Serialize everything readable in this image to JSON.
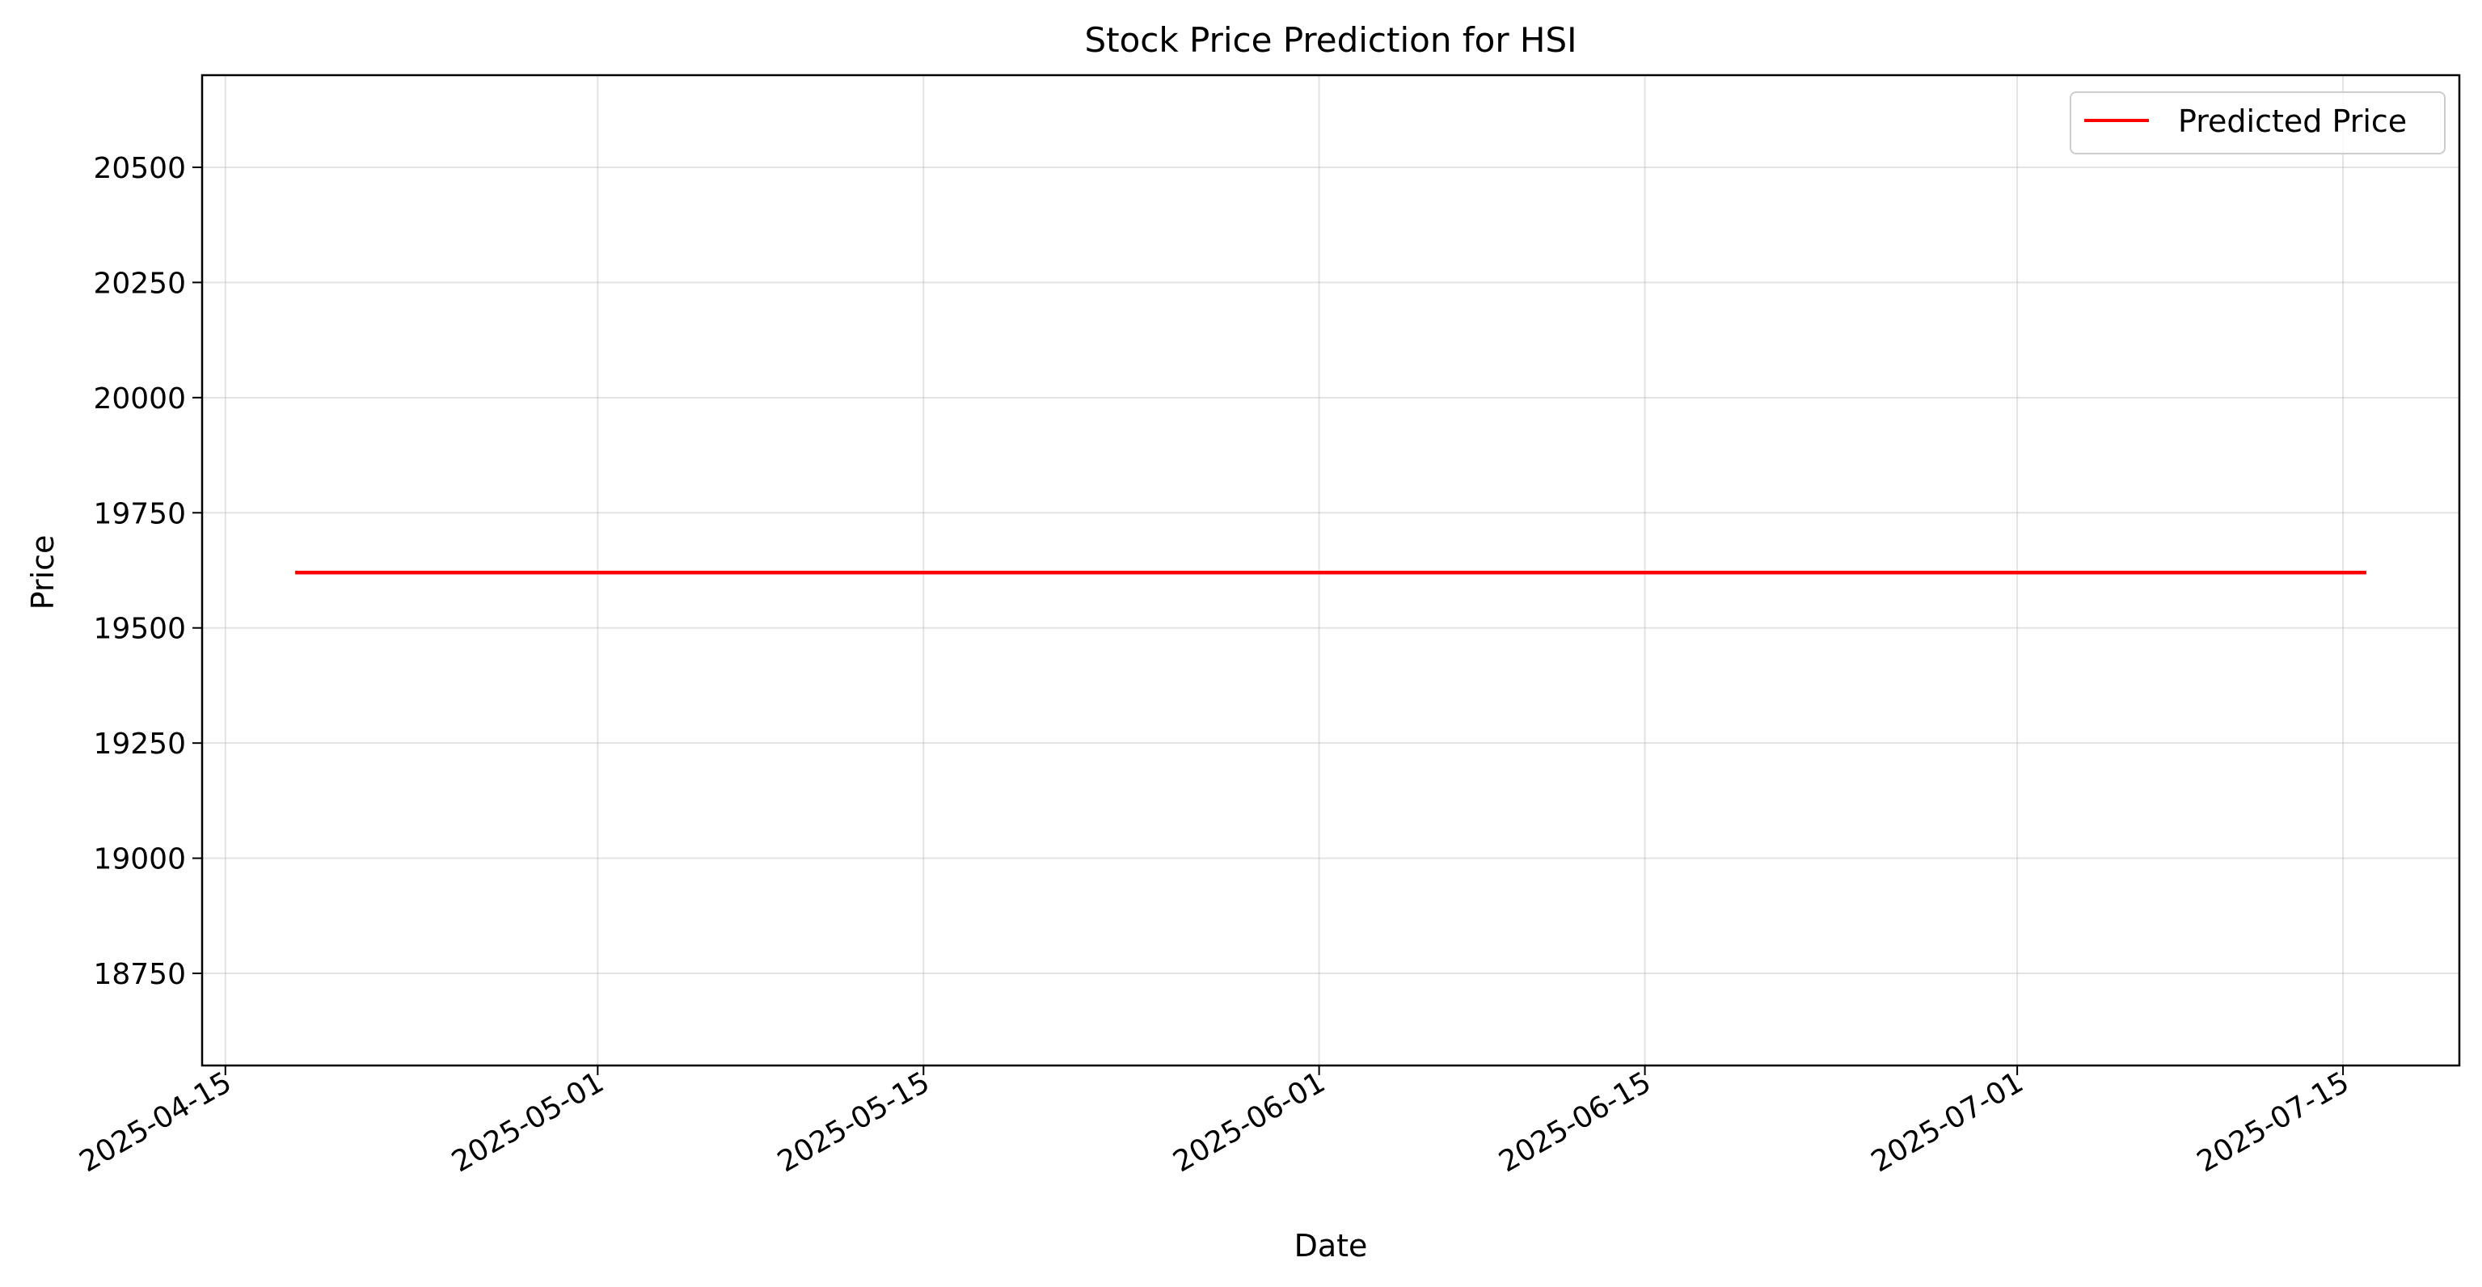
{
  "chart_data": {
    "type": "line",
    "title": "Stock Price Prediction for HSI",
    "xlabel": "Date",
    "ylabel": "Price",
    "x_type": "date",
    "xlim": [
      "2025-04-14",
      "2025-07-20"
    ],
    "ylim": [
      18550,
      20700
    ],
    "x_ticks": [
      "2025-04-15",
      "2025-05-01",
      "2025-05-15",
      "2025-06-01",
      "2025-06-15",
      "2025-07-01",
      "2025-07-15"
    ],
    "y_ticks": [
      18750,
      19000,
      19250,
      19500,
      19750,
      20000,
      20250,
      20500
    ],
    "grid": true,
    "legend_position": "top-right",
    "series": [
      {
        "name": "Predicted Price",
        "color": "#ff0000",
        "points": [
          {
            "x": "2025-04-18",
            "y": 19620
          },
          {
            "x": "2025-07-16",
            "y": 19620
          }
        ]
      }
    ]
  }
}
